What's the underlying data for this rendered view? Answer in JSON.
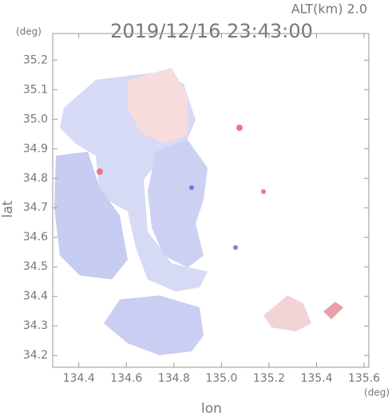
{
  "chart_data": {
    "type": "map",
    "title": "2019/12/16 23:43:00",
    "alt_label": "ALT(km) 2.0",
    "y_unit": "(deg)",
    "x_unit": "(deg)",
    "xlabel": "lon",
    "ylabel": "lat",
    "xlim": [
      134.29,
      135.62
    ],
    "ylim": [
      34.16,
      35.29
    ],
    "xticks": [
      134.4,
      134.6,
      134.8,
      {
        "value": 135,
        "label": "135.0"
      },
      135.2,
      135.4,
      135.6
    ],
    "yticks": [
      34.2,
      34.3,
      34.4,
      34.5,
      34.6,
      34.7,
      34.8,
      34.9,
      {
        "value": 35,
        "label": "35.0"
      },
      35.1,
      35.2
    ]
  }
}
